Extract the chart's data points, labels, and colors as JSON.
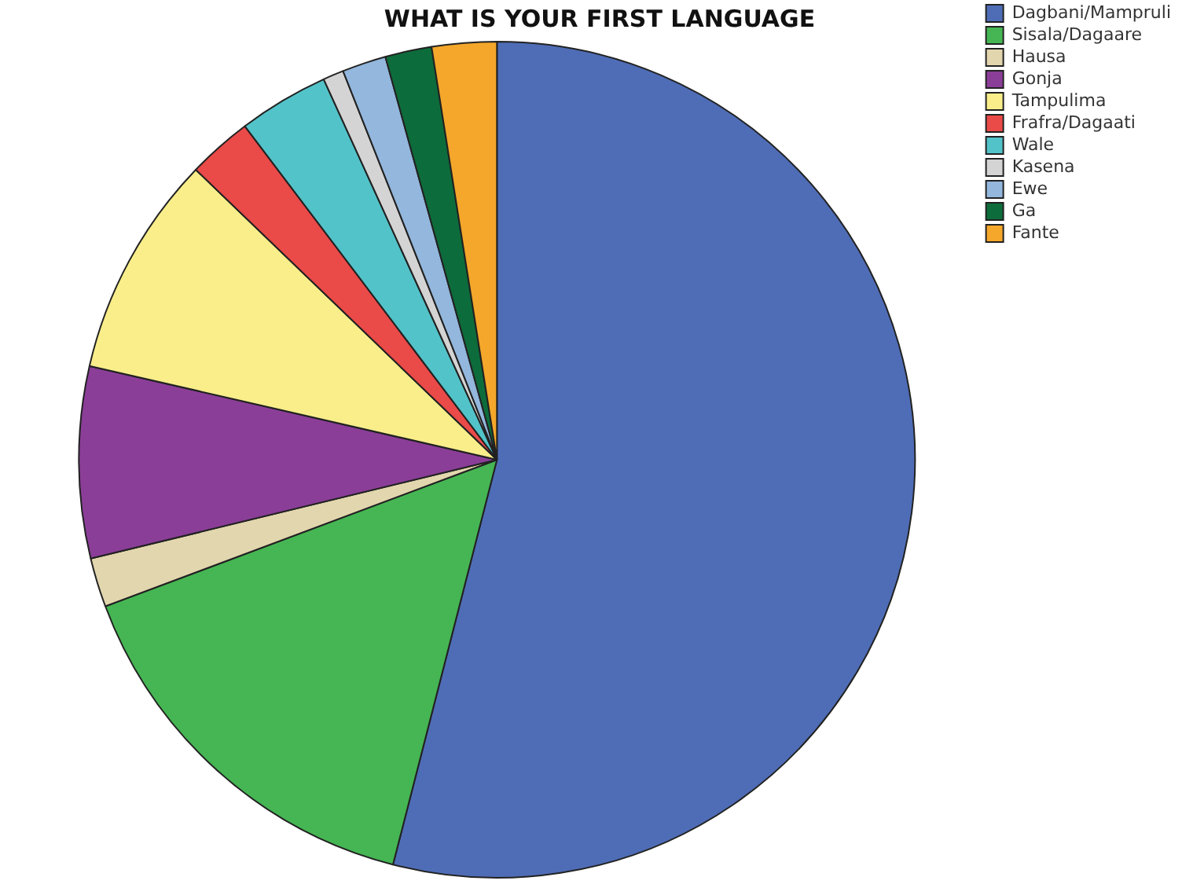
{
  "chart_data": {
    "type": "pie",
    "title": "WHAT IS YOUR FIRST LANGUAGE",
    "categories": [
      "Dagbani/Mampruli",
      "Sisala/Dagaare",
      "Hausa",
      "Gonja",
      "Tampulima",
      "Frafra/Dagaati",
      "Wale",
      "Kasena",
      "Ewe",
      "Ga",
      "Fante"
    ],
    "values": [
      54.0,
      15.3,
      1.9,
      7.4,
      8.6,
      2.5,
      3.5,
      0.8,
      1.7,
      1.8,
      2.5
    ],
    "colors": [
      "#4f6db6",
      "#45b653",
      "#e2d6ae",
      "#8b3e98",
      "#f9ee8a",
      "#ea4a48",
      "#52c3c9",
      "#d4d4d4",
      "#93b7dd",
      "#0d6c3b",
      "#f4a72a"
    ],
    "legend": "top right"
  }
}
